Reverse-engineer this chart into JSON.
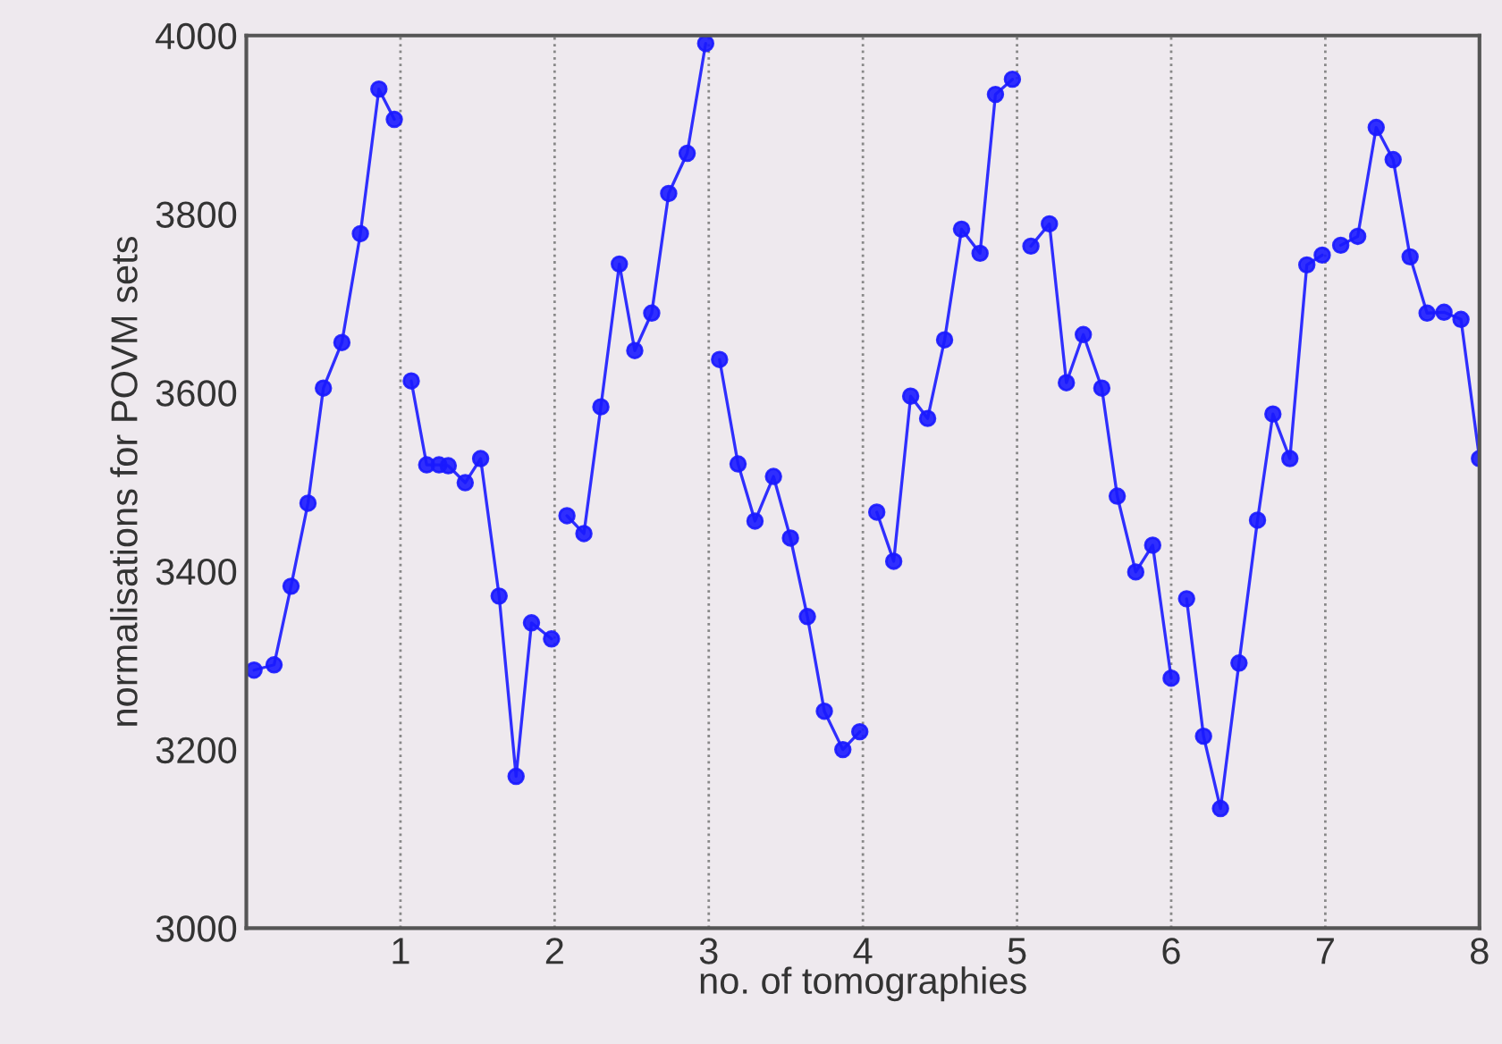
{
  "chart_data": {
    "type": "line",
    "xlabel": "no. of tomographies",
    "ylabel": "normalisations for POVM sets",
    "x": [
      0.05,
      0.18,
      0.29,
      0.4,
      0.5,
      0.62,
      0.74,
      0.86,
      0.96,
      1.01,
      1.07,
      1.17,
      1.25,
      1.31,
      1.42,
      1.52,
      1.64,
      1.75,
      1.85,
      1.98,
      2.03,
      2.08,
      2.19,
      2.3,
      2.42,
      2.52,
      2.63,
      2.74,
      2.86,
      2.98,
      3.02,
      3.07,
      3.19,
      3.3,
      3.42,
      3.53,
      3.64,
      3.75,
      3.87,
      3.98,
      4.03,
      4.09,
      4.2,
      4.31,
      4.42,
      4.53,
      4.64,
      4.76,
      4.86,
      4.97,
      5.03,
      5.09,
      5.21,
      5.32,
      5.43,
      5.55,
      5.65,
      5.77,
      5.88,
      6.0,
      6.05,
      6.1,
      6.21,
      6.32,
      6.44,
      6.56,
      6.66,
      6.77,
      6.88,
      6.98,
      7.04,
      7.1,
      7.21,
      7.33,
      7.44,
      7.55,
      7.66,
      7.77,
      7.88,
      8.0
    ],
    "series": [
      {
        "color": "#1a1aff",
        "values": [
          3289,
          3295,
          3383,
          3476,
          3605,
          3656,
          3778,
          3940,
          3906,
          null,
          3613,
          3519,
          3519,
          3518,
          3499,
          3526,
          3372,
          3170,
          3342,
          3324,
          null,
          3462,
          3442,
          3584,
          3744,
          3647,
          3689,
          3823,
          3868,
          3991,
          null,
          3637,
          3520,
          3456,
          3506,
          3437,
          3349,
          3243,
          3200,
          3220,
          null,
          3466,
          3411,
          3596,
          3571,
          3659,
          3783,
          3756,
          3934,
          3951,
          null,
          3764,
          3789,
          3611,
          3665,
          3605,
          3484,
          3399,
          3429,
          3280,
          null,
          3369,
          3215,
          3134,
          3297,
          3457,
          3576,
          3526,
          3743,
          3754,
          null,
          3765,
          3775,
          3897,
          3861,
          3752,
          3689,
          3690,
          3682,
          3526
        ]
      }
    ],
    "xlim": [
      0,
      8
    ],
    "xticks": [
      1,
      2,
      3,
      4,
      5,
      6,
      7,
      8
    ],
    "ylim": [
      3000,
      4000
    ],
    "yticks": [
      3000,
      3200,
      3400,
      3600,
      3800,
      4000
    ],
    "grid": "x",
    "marker": "circle",
    "line_style": "solid",
    "legend": false
  }
}
